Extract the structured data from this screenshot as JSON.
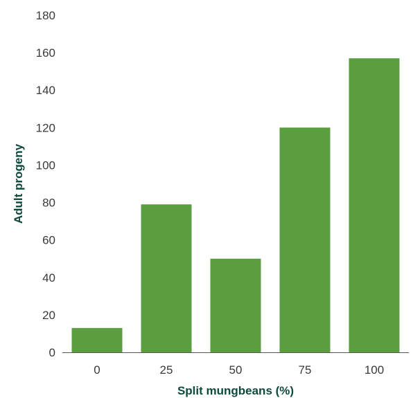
{
  "chart_data": {
    "type": "bar",
    "categories": [
      "0",
      "25",
      "50",
      "75",
      "100"
    ],
    "values": [
      13,
      79,
      50,
      120,
      157
    ],
    "xlabel": "Split mungbeans (%)",
    "ylabel": "Adult progeny",
    "ylim": [
      0,
      180
    ],
    "yticks": [
      0,
      20,
      40,
      60,
      80,
      100,
      120,
      140,
      160,
      180
    ],
    "grid": false,
    "colors": {
      "bar": "#5a9e3f",
      "axis": "#555555",
      "tick_text": "#3a3a3a",
      "axis_title": "#0d4a3a"
    }
  }
}
